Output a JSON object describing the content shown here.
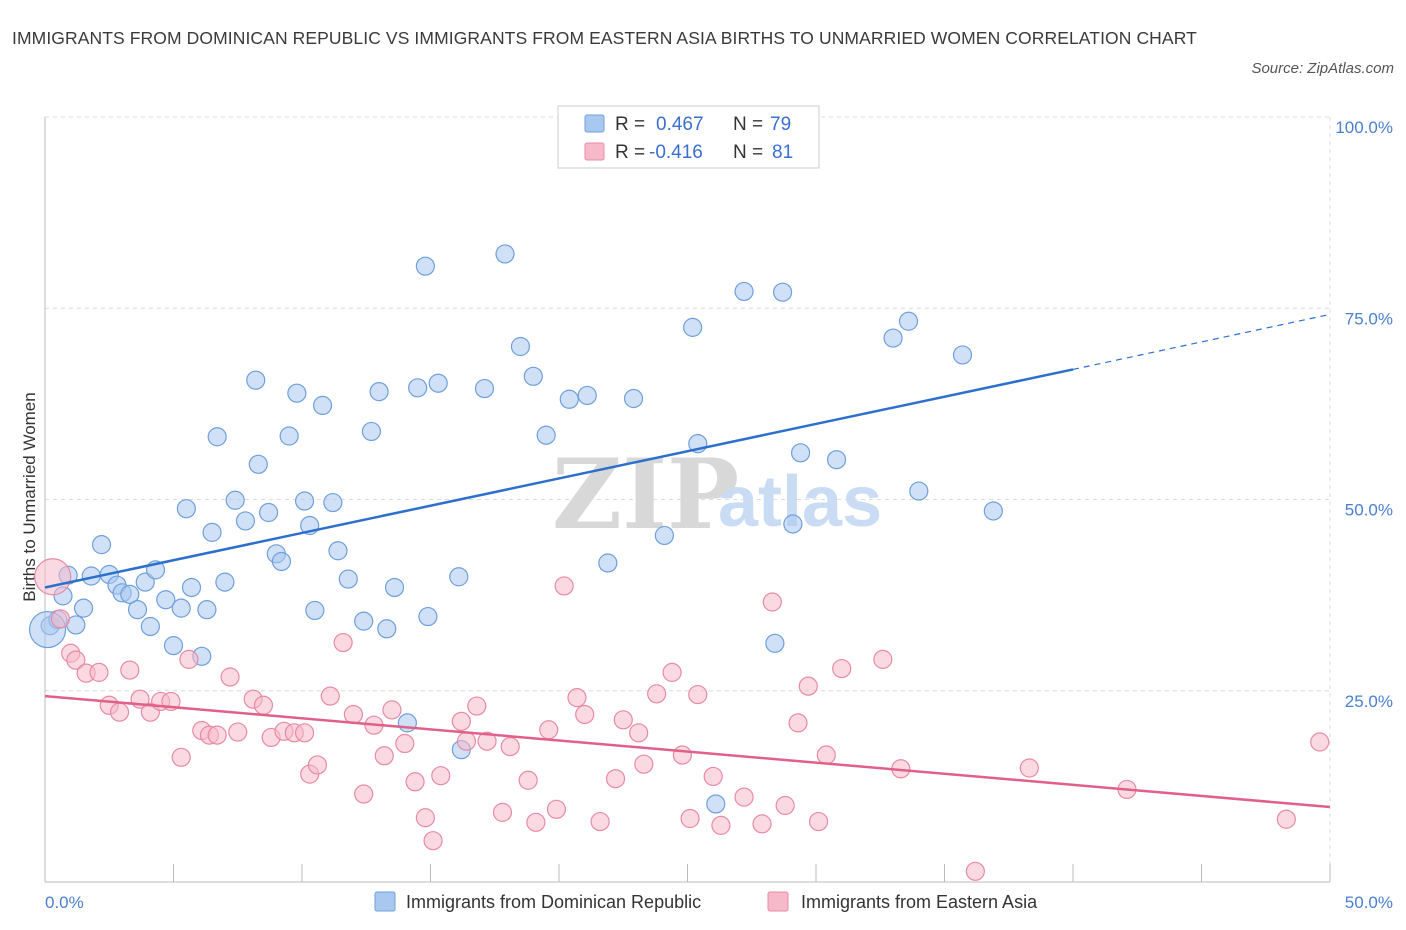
{
  "header": {
    "title": "IMMIGRANTS FROM DOMINICAN REPUBLIC VS IMMIGRANTS FROM EASTERN ASIA BIRTHS TO UNMARRIED WOMEN CORRELATION CHART",
    "source": "Source: ZipAtlas.com"
  },
  "watermark": {
    "zip": "ZIP",
    "atlas": "atlas"
  },
  "legend": {
    "r_label": "R =",
    "n_label": "N =",
    "rows": [
      {
        "r": "0.467",
        "n": "79"
      },
      {
        "r": "-0.416",
        "n": "81"
      }
    ]
  },
  "colors": {
    "series1_fill": "#a9c8f0",
    "series1_stroke": "#6f9fdc",
    "series1_line": "#2c6fcc",
    "series2_fill": "#f6b9ca",
    "series2_stroke": "#e88aa6",
    "series2_line": "#e0608a",
    "grid": "#dcdcdc",
    "tick_label": "#4a7fd0"
  },
  "chart_data": {
    "type": "scatter",
    "ylabel": "Births to Unmarried Women",
    "xlim": [
      0,
      50
    ],
    "ylim": [
      0,
      100
    ],
    "x_tick_labels": [
      "0.0%",
      "50.0%"
    ],
    "y_ticks": [
      {
        "value": 100,
        "label": "100.0%"
      },
      {
        "value": 75,
        "label": "75.0%"
      },
      {
        "value": 50,
        "label": "50.0%"
      },
      {
        "value": 25,
        "label": "25.0%"
      }
    ],
    "grid": true,
    "legend_position": "top-center",
    "series": [
      {
        "name": "Immigrants from Dominican Republic",
        "r": 0.467,
        "n": 79,
        "trend": {
          "x": [
            0,
            40
          ],
          "y": [
            38.5,
            67.0
          ],
          "dashed_to": [
            50,
            74.2
          ]
        },
        "points": [
          [
            0.2,
            33.5
          ],
          [
            0.5,
            34.3
          ],
          [
            0.7,
            37.4
          ],
          [
            0.9,
            40.1
          ],
          [
            1.2,
            33.6
          ],
          [
            1.5,
            35.8
          ],
          [
            1.8,
            40.0
          ],
          [
            2.2,
            44.1
          ],
          [
            2.5,
            40.2
          ],
          [
            2.8,
            38.8
          ],
          [
            3.0,
            37.8
          ],
          [
            3.3,
            37.6
          ],
          [
            3.6,
            35.6
          ],
          [
            3.9,
            39.2
          ],
          [
            4.1,
            33.4
          ],
          [
            4.3,
            40.8
          ],
          [
            4.7,
            36.9
          ],
          [
            5.0,
            30.9
          ],
          [
            5.3,
            35.8
          ],
          [
            5.5,
            48.8
          ],
          [
            5.7,
            38.5
          ],
          [
            6.1,
            29.5
          ],
          [
            6.3,
            35.6
          ],
          [
            6.5,
            45.7
          ],
          [
            6.7,
            58.2
          ],
          [
            7.0,
            39.2
          ],
          [
            7.4,
            49.9
          ],
          [
            7.8,
            47.2
          ],
          [
            8.2,
            65.6
          ],
          [
            8.3,
            54.6
          ],
          [
            8.7,
            48.3
          ],
          [
            9.0,
            42.9
          ],
          [
            9.2,
            41.9
          ],
          [
            9.5,
            58.3
          ],
          [
            9.8,
            63.9
          ],
          [
            10.1,
            49.8
          ],
          [
            10.3,
            46.6
          ],
          [
            10.5,
            35.5
          ],
          [
            10.8,
            62.3
          ],
          [
            11.2,
            49.6
          ],
          [
            11.4,
            43.3
          ],
          [
            11.8,
            39.6
          ],
          [
            12.4,
            34.1
          ],
          [
            12.7,
            58.9
          ],
          [
            13.0,
            64.1
          ],
          [
            13.3,
            33.1
          ],
          [
            13.6,
            38.5
          ],
          [
            14.1,
            20.8
          ],
          [
            14.5,
            64.6
          ],
          [
            14.8,
            80.5
          ],
          [
            14.9,
            34.7
          ],
          [
            15.3,
            65.2
          ],
          [
            16.1,
            39.9
          ],
          [
            16.2,
            17.3
          ],
          [
            17.1,
            64.5
          ],
          [
            17.9,
            82.1
          ],
          [
            18.5,
            70.0
          ],
          [
            19.0,
            66.1
          ],
          [
            19.5,
            58.4
          ],
          [
            20.4,
            63.1
          ],
          [
            21.1,
            63.6
          ],
          [
            21.9,
            41.7
          ],
          [
            22.9,
            63.2
          ],
          [
            24.1,
            45.3
          ],
          [
            25.2,
            72.5
          ],
          [
            25.4,
            57.3
          ],
          [
            26.1,
            10.2
          ],
          [
            27.2,
            77.2
          ],
          [
            28.4,
            31.2
          ],
          [
            28.7,
            77.1
          ],
          [
            29.1,
            46.8
          ],
          [
            29.4,
            56.1
          ],
          [
            30.8,
            55.2
          ],
          [
            33.0,
            71.1
          ],
          [
            33.6,
            73.3
          ],
          [
            34.0,
            51.1
          ],
          [
            35.7,
            68.9
          ],
          [
            36.9,
            48.5
          ],
          [
            0.1,
            33.0
          ]
        ]
      },
      {
        "name": "Immigrants from Eastern Asia",
        "r": -0.416,
        "n": 81,
        "trend": {
          "x": [
            0,
            50
          ],
          "y": [
            24.3,
            9.8
          ]
        },
        "points": [
          [
            0.3,
            39.9
          ],
          [
            0.6,
            34.4
          ],
          [
            1.0,
            29.9
          ],
          [
            1.2,
            29.0
          ],
          [
            1.6,
            27.3
          ],
          [
            2.1,
            27.4
          ],
          [
            2.5,
            23.1
          ],
          [
            2.9,
            22.2
          ],
          [
            3.3,
            27.7
          ],
          [
            3.7,
            23.9
          ],
          [
            4.1,
            22.2
          ],
          [
            4.5,
            23.6
          ],
          [
            4.9,
            23.6
          ],
          [
            5.3,
            16.3
          ],
          [
            5.6,
            29.1
          ],
          [
            6.1,
            19.8
          ],
          [
            6.4,
            19.2
          ],
          [
            6.7,
            19.2
          ],
          [
            7.2,
            26.8
          ],
          [
            7.5,
            19.6
          ],
          [
            8.1,
            23.9
          ],
          [
            8.5,
            23.1
          ],
          [
            8.8,
            18.9
          ],
          [
            9.3,
            19.7
          ],
          [
            9.7,
            19.5
          ],
          [
            10.1,
            19.5
          ],
          [
            10.3,
            14.1
          ],
          [
            10.6,
            15.3
          ],
          [
            11.1,
            24.3
          ],
          [
            11.6,
            31.3
          ],
          [
            12.0,
            21.9
          ],
          [
            12.4,
            11.5
          ],
          [
            12.8,
            20.5
          ],
          [
            13.2,
            16.5
          ],
          [
            13.5,
            22.5
          ],
          [
            14.0,
            18.1
          ],
          [
            14.4,
            13.1
          ],
          [
            14.8,
            8.4
          ],
          [
            15.1,
            5.4
          ],
          [
            15.4,
            13.9
          ],
          [
            16.2,
            21.0
          ],
          [
            16.4,
            18.4
          ],
          [
            16.8,
            23.0
          ],
          [
            17.2,
            18.4
          ],
          [
            17.8,
            9.1
          ],
          [
            18.1,
            17.7
          ],
          [
            18.8,
            13.3
          ],
          [
            19.1,
            7.8
          ],
          [
            19.6,
            19.9
          ],
          [
            19.9,
            9.5
          ],
          [
            20.2,
            38.7
          ],
          [
            20.7,
            24.1
          ],
          [
            21.0,
            21.9
          ],
          [
            21.6,
            7.9
          ],
          [
            22.2,
            13.5
          ],
          [
            22.5,
            21.2
          ],
          [
            23.1,
            19.5
          ],
          [
            23.3,
            15.4
          ],
          [
            23.8,
            24.6
          ],
          [
            24.4,
            27.4
          ],
          [
            24.8,
            16.6
          ],
          [
            25.1,
            8.3
          ],
          [
            25.4,
            24.5
          ],
          [
            26.0,
            13.8
          ],
          [
            26.3,
            7.4
          ],
          [
            27.2,
            11.1
          ],
          [
            27.9,
            7.6
          ],
          [
            28.3,
            36.6
          ],
          [
            28.8,
            10.0
          ],
          [
            29.3,
            20.8
          ],
          [
            29.7,
            25.6
          ],
          [
            30.1,
            7.9
          ],
          [
            30.4,
            16.6
          ],
          [
            31.0,
            27.9
          ],
          [
            32.6,
            29.1
          ],
          [
            33.3,
            14.8
          ],
          [
            36.2,
            1.4
          ],
          [
            38.3,
            14.9
          ],
          [
            42.1,
            12.1
          ],
          [
            48.3,
            8.2
          ],
          [
            49.6,
            18.3
          ]
        ]
      }
    ]
  }
}
